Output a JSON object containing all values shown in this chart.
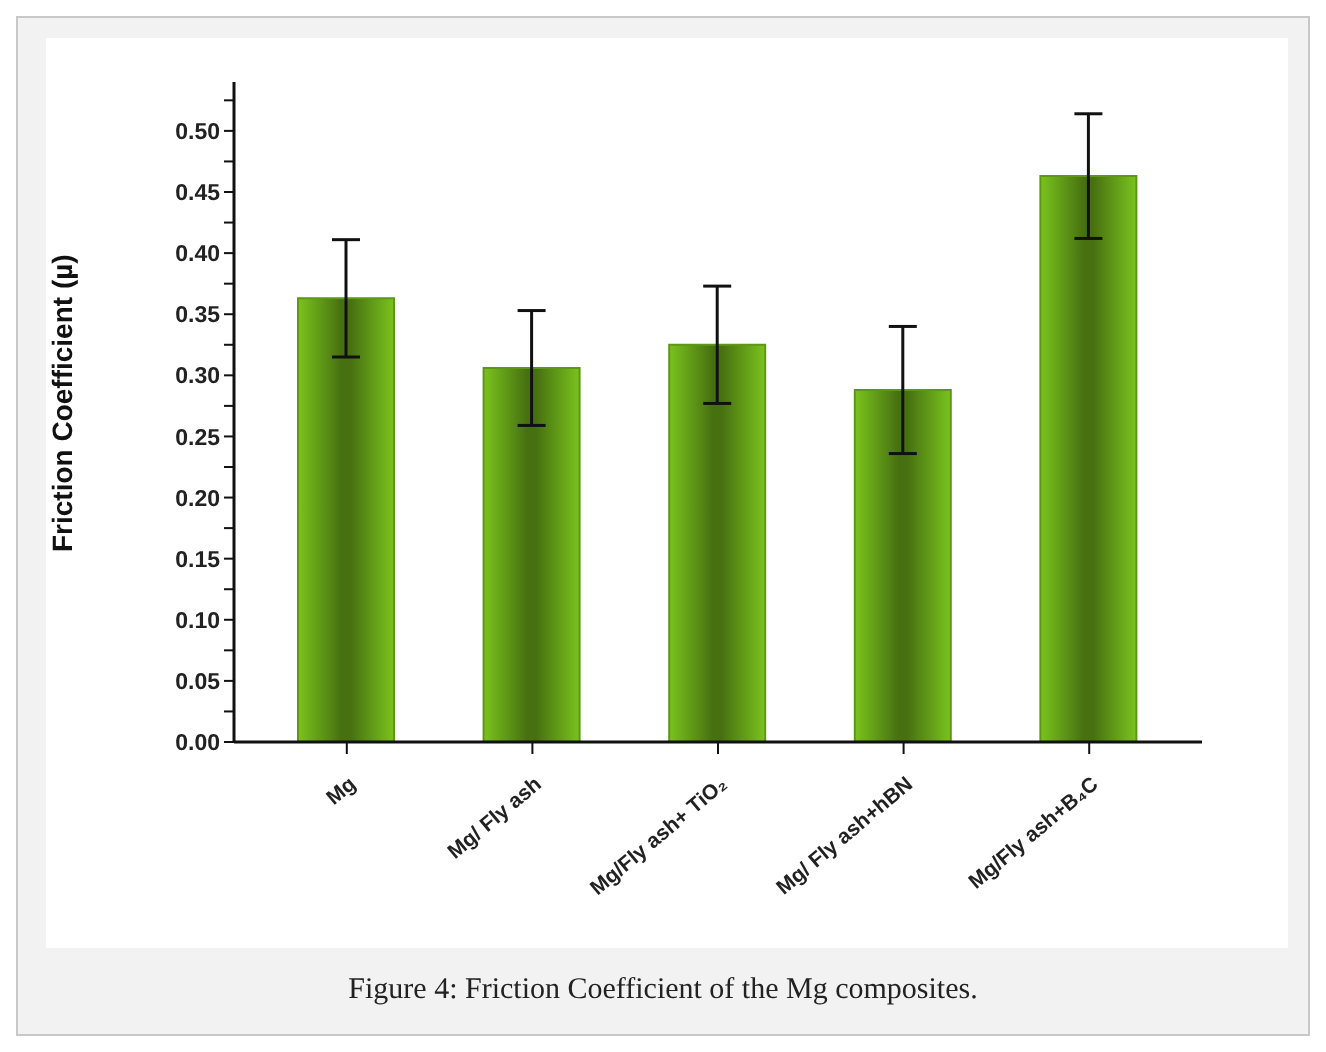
{
  "chart_data": {
    "type": "bar",
    "ylabel": "Friction Coefficient (µ)",
    "categories": [
      "Mg",
      "Mg/ Fly ash",
      "Mg/Fly ash+ TiO₂",
      "Mg/ Fly ash+hBN",
      "Mg/Fly ash+B₄C"
    ],
    "values": [
      0.363,
      0.306,
      0.325,
      0.288,
      0.463
    ],
    "errors": [
      0.048,
      0.047,
      0.048,
      0.052,
      0.051
    ],
    "color": "#5e9616",
    "ylim": [
      0,
      0.54
    ],
    "yticks": [
      {
        "value": 0,
        "label": "0.00"
      },
      {
        "value": 0.025,
        "label": null
      },
      {
        "value": 0.05,
        "label": "0.05"
      },
      {
        "value": 0.075,
        "label": null
      },
      {
        "value": 0.1,
        "label": "0.10"
      },
      {
        "value": 0.125,
        "label": null
      },
      {
        "value": 0.15,
        "label": "0.15"
      },
      {
        "value": 0.175,
        "label": null
      },
      {
        "value": 0.2,
        "label": "0.20"
      },
      {
        "value": 0.225,
        "label": null
      },
      {
        "value": 0.25,
        "label": "0.25"
      },
      {
        "value": 0.275,
        "label": null
      },
      {
        "value": 0.3,
        "label": "0.30"
      },
      {
        "value": 0.325,
        "label": null
      },
      {
        "value": 0.35,
        "label": "0.35"
      },
      {
        "value": 0.375,
        "label": null
      },
      {
        "value": 0.4,
        "label": "0.40"
      },
      {
        "value": 0.425,
        "label": null
      },
      {
        "value": 0.45,
        "label": "0.45"
      },
      {
        "value": 0.475,
        "label": null
      },
      {
        "value": 0.5,
        "label": "0.50"
      },
      {
        "value": 0.525,
        "label": null
      }
    ],
    "grid": false,
    "legend": false,
    "annotations": [
      "Figure 4: Friction Coefficient of the Mg composites."
    ]
  }
}
